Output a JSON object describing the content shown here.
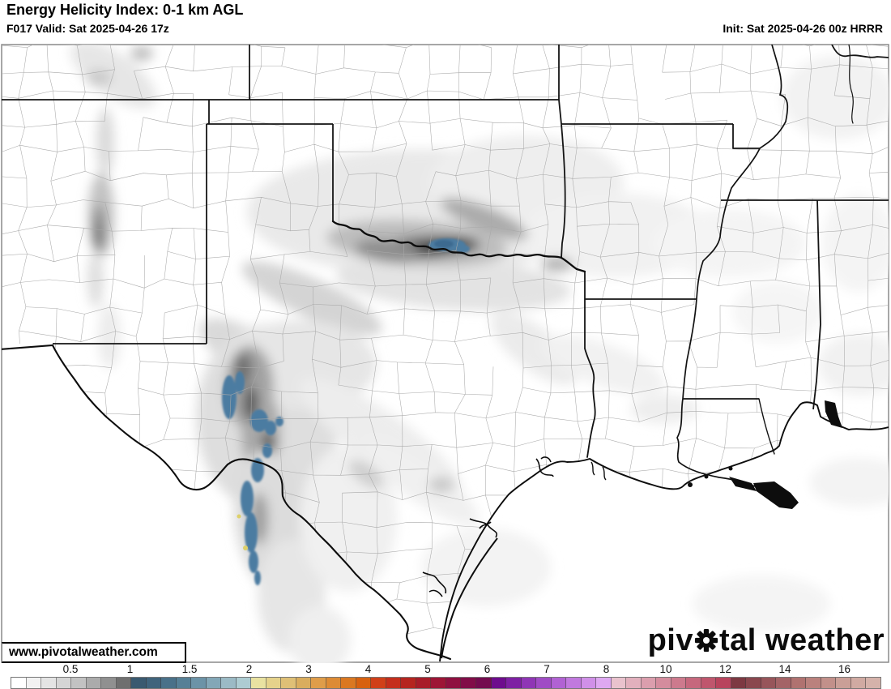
{
  "header": {
    "title": "Energy Helicity Index: 0-1 km AGL",
    "valid": "F017 Valid: Sat 2025-04-26 17z",
    "init": "Init: Sat 2025-04-26 00z HRRR"
  },
  "map": {
    "watermark": "www.pivotalweather.com",
    "logo": {
      "part1": "piv",
      "part2": "tal",
      "part3": " weather"
    }
  },
  "colorbar": {
    "tick_labels": [
      "0.5",
      "1",
      "1.5",
      "2",
      "3",
      "4",
      "5",
      "6",
      "7",
      "8",
      "10",
      "12",
      "14",
      "16"
    ],
    "tick_start_x": 87,
    "tick_spacing_px": 73.5,
    "cell_colors": [
      "#ffffff",
      "#f2f2f2",
      "#e4e4e4",
      "#d5d5d5",
      "#c2c2c2",
      "#ababab",
      "#909090",
      "#6f6f6f",
      "#3a5a70",
      "#40647c",
      "#4a7189",
      "#578096",
      "#6c93a7",
      "#83a7b7",
      "#9bbac5",
      "#adccd2",
      "#e9e2a1",
      "#e5d28b",
      "#dfc076",
      "#d9ad5e",
      "#df9d4a",
      "#dd8b35",
      "#da7821",
      "#d76110",
      "#d04019",
      "#c42e1c",
      "#b5251f",
      "#a81c29",
      "#9d1536",
      "#8f1040",
      "#810d48",
      "#740b4f",
      "#6e0c8d",
      "#7e20a3",
      "#8f36b5",
      "#a04cc5",
      "#b162d3",
      "#c179de",
      "#d090e8",
      "#dea8f1",
      "#e9c2cd",
      "#e2b0bd",
      "#db9ead",
      "#d48c9d",
      "#cd7a8d",
      "#c6687d",
      "#bf566d",
      "#b8445d",
      "#7d3942",
      "#8a474e",
      "#97555a",
      "#a46366",
      "#b07270",
      "#ba817d",
      "#c2908a",
      "#ca9f97",
      "#d0aaa2",
      "#d5b2aa"
    ],
    "ehi_blue": "#4c7ca1",
    "ehi_gray_dark": "#4a4a4a",
    "ehi_yellow": "#ddd06a"
  }
}
